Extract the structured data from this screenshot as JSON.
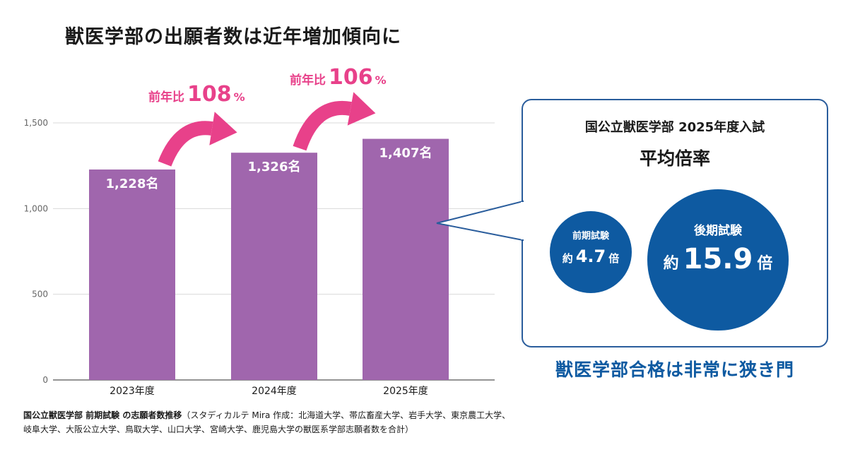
{
  "title": "獣医学部の出願者数は近年増加傾向に",
  "chart_data": {
    "type": "bar",
    "categories": [
      "2023年度",
      "2024年度",
      "2025年度"
    ],
    "values": [
      1228,
      1326,
      1407
    ],
    "value_labels": [
      "1,228名",
      "1,326名",
      "1,407名"
    ],
    "y_ticks": [
      0,
      500,
      1000,
      1500
    ],
    "y_tick_labels": [
      "0",
      "500",
      "1,000",
      "1,500"
    ],
    "ylim": [
      0,
      1500
    ],
    "grid": true,
    "bar_color": "#a066ad",
    "arrow_color": "#e8418a"
  },
  "growth": [
    {
      "label": "前年比",
      "value": "108",
      "unit": "%"
    },
    {
      "label": "前年比",
      "value": "106",
      "unit": "%"
    }
  ],
  "callout": {
    "title": "国公立獣医学部 2025年度入試",
    "subtitle": "平均倍率",
    "circles": [
      {
        "exam": "前期試験",
        "prefix": "約",
        "value": "4.7",
        "suffix": "倍"
      },
      {
        "exam": "後期試験",
        "prefix": "約",
        "value": "15.9",
        "suffix": "倍"
      }
    ],
    "color": "#0e5aa1"
  },
  "tagline": "獣医学部合格は非常に狭き門",
  "caption": {
    "bold": "国公立獣医学部 前期試験 の志願者数推移",
    "text": "（スタディカルテ Mira 作成：北海道大学、帯広畜産大学、岩手大学、東京農工大学、岐阜大学、大阪公立大学、鳥取大学、山口大学、宮崎大学、鹿児島大学の獣医系学部志願者数を合計）"
  }
}
